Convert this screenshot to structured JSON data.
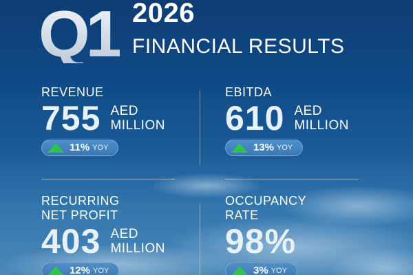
{
  "header": {
    "logo_text": "Q1",
    "year": "2026",
    "subtitle": "FINANCIAL RESULTS"
  },
  "metrics": [
    {
      "label": "REVENUE",
      "value": "755",
      "unit": "AED\nMILLION",
      "change": "11%",
      "change_suffix": "YOY",
      "direction": "up"
    },
    {
      "label": "EBITDA",
      "value": "610",
      "unit": "AED\nMILLION",
      "change": "13%",
      "change_suffix": "YOY",
      "direction": "up"
    },
    {
      "label": "RECURRING\nNET PROFIT",
      "value": "403",
      "unit": "AED\nMILLION",
      "change": "12%",
      "change_suffix": "YOY",
      "direction": "up"
    },
    {
      "label": "OCCUPANCY\nRATE",
      "value": "98%",
      "unit": "",
      "change": "3%",
      "change_suffix": "YOY",
      "direction": "up"
    }
  ],
  "colors": {
    "background_top": "#0e3c74",
    "background_bottom": "#4a88b8",
    "up_arrow": "#2fc24c",
    "pill": "#4485bf"
  }
}
